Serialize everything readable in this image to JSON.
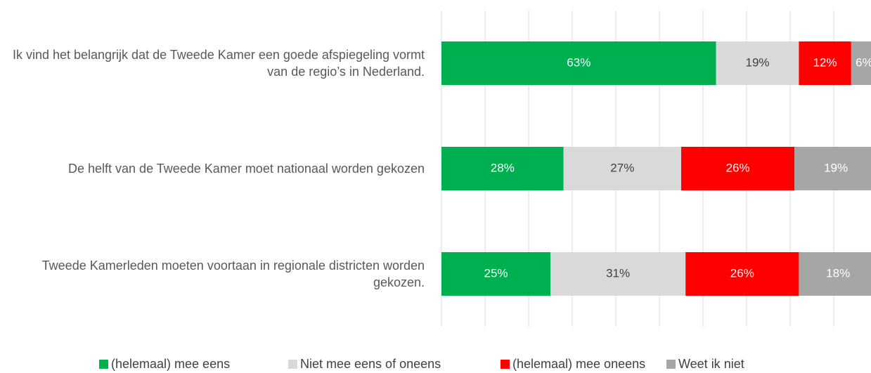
{
  "chart_data": {
    "type": "stacked_bar",
    "orientation": "horizontal",
    "categories": [
      "Ik vind het belangrijk dat de Tweede Kamer een goede afspiegeling vormt van de regio’s in Nederland.",
      "De helft van de Tweede Kamer moet nationaal worden gekozen",
      "Tweede Kamerleden moeten voortaan in regionale districten worden gekozen."
    ],
    "series": [
      {
        "name": "(helemaal) mee eens",
        "color": "#00b050",
        "values": [
          63,
          28,
          25
        ],
        "value_labels": [
          "63%",
          "28%",
          "25%"
        ]
      },
      {
        "name": "Niet mee eens of oneens",
        "color": "#d9d9d9",
        "values": [
          19,
          27,
          31
        ],
        "value_labels": [
          "19%",
          "27%",
          "31%"
        ]
      },
      {
        "name": "(helemaal) mee oneens",
        "color": "#ff0000",
        "values": [
          12,
          26,
          26
        ],
        "value_labels": [
          "12%",
          "26%",
          "26%"
        ]
      },
      {
        "name": "Weet ik niet",
        "color": "#a6a6a6",
        "values": [
          6,
          19,
          18
        ],
        "value_labels": [
          "6%",
          "19%",
          "18%"
        ]
      }
    ],
    "xlim": [
      0,
      100
    ],
    "xticks": [
      0,
      10,
      20,
      30,
      40,
      50,
      60,
      70,
      80,
      90,
      100
    ],
    "grid": true,
    "legend": "bottom"
  }
}
